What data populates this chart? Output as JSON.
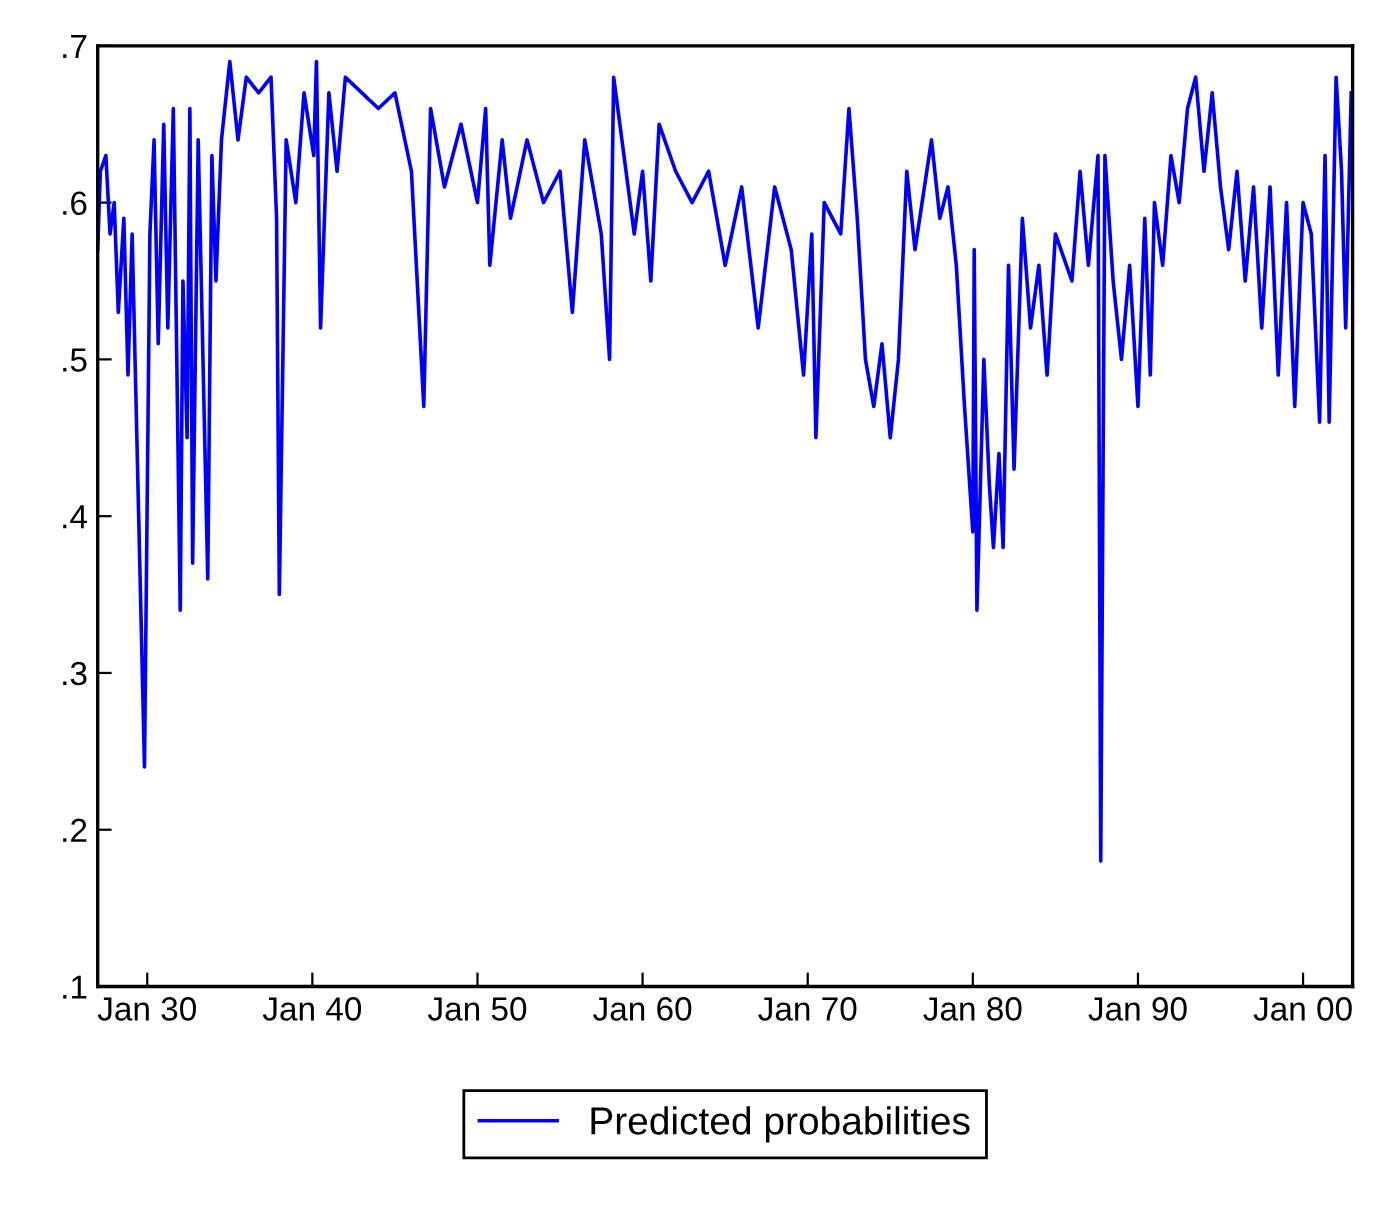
{
  "chart_data": {
    "type": "line",
    "x": [
      "1927-01",
      "1927-03",
      "1927-07",
      "1927-10",
      "1928-01",
      "1928-04",
      "1928-08",
      "1928-11",
      "1929-02",
      "1929-11",
      "1930-03",
      "1930-06",
      "1930-09",
      "1931-01",
      "1931-04",
      "1931-08",
      "1932-01",
      "1932-03",
      "1932-06",
      "1932-08",
      "1932-10",
      "1933-02",
      "1933-09",
      "1933-12",
      "1934-03",
      "1934-07",
      "1935-01",
      "1935-07",
      "1936-01",
      "1936-10",
      "1937-07",
      "1937-11",
      "1938-01",
      "1938-06",
      "1939-01",
      "1939-07",
      "1940-02",
      "1940-04",
      "1940-07",
      "1941-01",
      "1941-07",
      "1942-01",
      "1943-01",
      "1944-01",
      "1945-01",
      "1946-01",
      "1946-10",
      "1947-03",
      "1948-01",
      "1949-01",
      "1950-01",
      "1950-07",
      "1950-10",
      "1951-07",
      "1952-01",
      "1953-01",
      "1954-01",
      "1955-01",
      "1955-10",
      "1956-07",
      "1957-07",
      "1958-01",
      "1958-04",
      "1958-10",
      "1959-07",
      "1960-01",
      "1960-07",
      "1961-01",
      "1962-01",
      "1963-01",
      "1964-01",
      "1965-01",
      "1966-01",
      "1967-01",
      "1968-01",
      "1969-01",
      "1969-10",
      "1970-04",
      "1970-07",
      "1971-01",
      "1972-01",
      "1972-07",
      "1973-01",
      "1973-07",
      "1974-01",
      "1974-07",
      "1975-01",
      "1975-07",
      "1976-01",
      "1976-07",
      "1977-07",
      "1978-01",
      "1978-07",
      "1979-01",
      "1979-07",
      "1980-01",
      "1980-02",
      "1980-04",
      "1980-09",
      "1981-01",
      "1981-04",
      "1981-08",
      "1981-11",
      "1982-03",
      "1982-07",
      "1983-01",
      "1983-07",
      "1984-01",
      "1984-07",
      "1985-01",
      "1986-01",
      "1986-07",
      "1987-01",
      "1987-08",
      "1987-10",
      "1988-01",
      "1988-07",
      "1989-01",
      "1989-07",
      "1990-01",
      "1990-06",
      "1990-10",
      "1991-01",
      "1991-07",
      "1992-01",
      "1992-07",
      "1993-01",
      "1993-07",
      "1994-01",
      "1994-07",
      "1995-01",
      "1995-07",
      "1996-01",
      "1996-07",
      "1997-01",
      "1997-07",
      "1998-01",
      "1998-07",
      "1999-01",
      "1999-07",
      "2000-01",
      "2000-07",
      "2001-01",
      "2001-05",
      "2001-08",
      "2002-01",
      "2002-05",
      "2002-08",
      "2002-12"
    ],
    "series": [
      {
        "name": "Predicted probabilities",
        "color": "#0000ff",
        "values": [
          0.57,
          0.62,
          0.63,
          0.58,
          0.6,
          0.53,
          0.59,
          0.49,
          0.58,
          0.24,
          0.58,
          0.64,
          0.51,
          0.65,
          0.52,
          0.66,
          0.34,
          0.55,
          0.45,
          0.66,
          0.37,
          0.64,
          0.36,
          0.63,
          0.55,
          0.64,
          0.69,
          0.64,
          0.68,
          0.67,
          0.68,
          0.59,
          0.35,
          0.64,
          0.6,
          0.67,
          0.63,
          0.69,
          0.52,
          0.67,
          0.62,
          0.68,
          0.67,
          0.66,
          0.67,
          0.62,
          0.47,
          0.66,
          0.61,
          0.65,
          0.6,
          0.66,
          0.56,
          0.64,
          0.59,
          0.64,
          0.6,
          0.62,
          0.53,
          0.64,
          0.58,
          0.5,
          0.68,
          0.64,
          0.58,
          0.62,
          0.55,
          0.65,
          0.62,
          0.6,
          0.62,
          0.56,
          0.61,
          0.52,
          0.61,
          0.57,
          0.49,
          0.58,
          0.45,
          0.6,
          0.58,
          0.66,
          0.59,
          0.5,
          0.47,
          0.51,
          0.45,
          0.5,
          0.62,
          0.57,
          0.64,
          0.59,
          0.61,
          0.56,
          0.47,
          0.39,
          0.57,
          0.34,
          0.5,
          0.42,
          0.38,
          0.44,
          0.38,
          0.56,
          0.43,
          0.59,
          0.52,
          0.56,
          0.49,
          0.58,
          0.55,
          0.62,
          0.56,
          0.63,
          0.18,
          0.63,
          0.55,
          0.5,
          0.56,
          0.47,
          0.59,
          0.49,
          0.6,
          0.56,
          0.63,
          0.6,
          0.66,
          0.68,
          0.62,
          0.67,
          0.61,
          0.57,
          0.62,
          0.55,
          0.61,
          0.52,
          0.61,
          0.49,
          0.6,
          0.47,
          0.6,
          0.58,
          0.46,
          0.63,
          0.46,
          0.68,
          0.62,
          0.52,
          0.67
        ]
      }
    ],
    "xlim": [
      "1927-01",
      "2003-01"
    ],
    "xticks": [
      {
        "value": "1930-01",
        "label": "Jan 30"
      },
      {
        "value": "1940-01",
        "label": "Jan 40"
      },
      {
        "value": "1950-01",
        "label": "Jan 50"
      },
      {
        "value": "1960-01",
        "label": "Jan 60"
      },
      {
        "value": "1970-01",
        "label": "Jan 70"
      },
      {
        "value": "1980-01",
        "label": "Jan 80"
      },
      {
        "value": "1990-01",
        "label": "Jan 90"
      },
      {
        "value": "2000-01",
        "label": "Jan 00"
      }
    ],
    "ylim": [
      0.1,
      0.7
    ],
    "yticks": [
      {
        "value": 0.1,
        "label": ".1"
      },
      {
        "value": 0.2,
        "label": ".2"
      },
      {
        "value": 0.3,
        "label": ".3"
      },
      {
        "value": 0.4,
        "label": ".4"
      },
      {
        "value": 0.5,
        "label": ".5"
      },
      {
        "value": 0.6,
        "label": ".6"
      },
      {
        "value": 0.7,
        "label": ".7"
      }
    ],
    "grid": false,
    "legend": "bottom",
    "line_style": "solid"
  }
}
